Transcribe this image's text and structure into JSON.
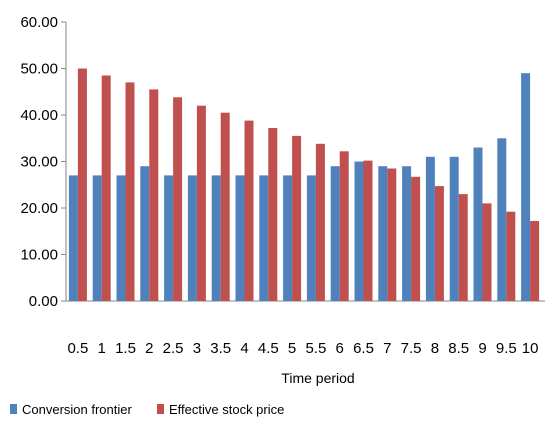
{
  "chart_data": {
    "type": "bar",
    "title": "",
    "xlabel": "Time period",
    "ylabel": "",
    "ylim": [
      0,
      60
    ],
    "yticks": [
      "0.00",
      "10.00",
      "20.00",
      "30.00",
      "40.00",
      "50.00",
      "60.00"
    ],
    "ytick_values": [
      0,
      10,
      20,
      30,
      40,
      50,
      60
    ],
    "grid": false,
    "legend_position": "bottom-left",
    "categories": [
      "0.5",
      "1",
      "1.5",
      "2",
      "2.5",
      "3",
      "3.5",
      "4",
      "4.5",
      "5",
      "5.5",
      "6",
      "6.5",
      "7",
      "7.5",
      "8",
      "8.5",
      "9",
      "9.5",
      "10"
    ],
    "series": [
      {
        "name": "Conversion frontier",
        "color": "#4f81bd",
        "values": [
          27,
          27,
          27,
          29,
          27,
          27,
          27,
          27,
          27,
          27,
          27,
          29,
          30,
          29,
          29,
          31,
          31,
          33,
          35,
          49
        ]
      },
      {
        "name": "Effective stock price",
        "color": "#c0504d",
        "values": [
          50,
          48.5,
          47,
          45.5,
          43.8,
          42,
          40.5,
          38.8,
          37.2,
          35.5,
          33.8,
          32.2,
          30.2,
          28.5,
          26.7,
          24.7,
          23,
          21,
          19.2,
          17.2
        ]
      }
    ]
  }
}
